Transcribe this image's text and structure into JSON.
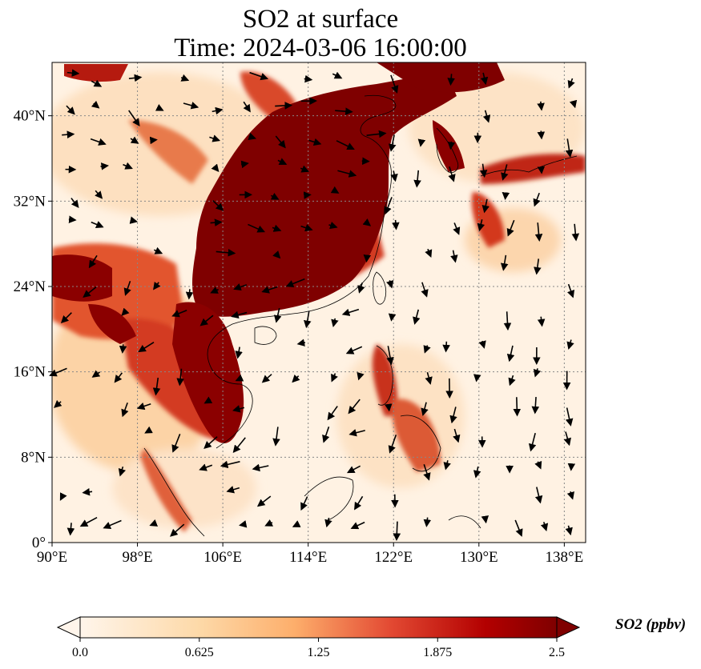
{
  "title": {
    "line1": "SO2 at surface",
    "line2": "Time: 2024-03-06 16:00:00"
  },
  "map": {
    "lon_range": [
      90,
      140
    ],
    "lat_range": [
      0,
      45
    ],
    "lon_ticks": [
      {
        "value": 90,
        "label": "90°E"
      },
      {
        "value": 98,
        "label": "98°E"
      },
      {
        "value": 106,
        "label": "106°E"
      },
      {
        "value": 114,
        "label": "114°E"
      },
      {
        "value": 122,
        "label": "122°E"
      },
      {
        "value": 130,
        "label": "130°E"
      },
      {
        "value": 138,
        "label": "138°E"
      }
    ],
    "lat_ticks": [
      {
        "value": 0,
        "label": "0°"
      },
      {
        "value": 8,
        "label": "8°N"
      },
      {
        "value": 16,
        "label": "16°N"
      },
      {
        "value": 24,
        "label": "24°N"
      },
      {
        "value": 32,
        "label": "32°N"
      },
      {
        "value": 40,
        "label": "40°N"
      }
    ],
    "gridlines": true,
    "field": "SO2 surface concentration with wind vectors"
  },
  "colorbar": {
    "label": "SO2 (ppbv)",
    "min": 0.0,
    "max": 2.5,
    "ticks": [
      "0.0",
      "0.625",
      "1.25",
      "1.875",
      "2.5"
    ],
    "extend": "both",
    "colormap": [
      "#fff5eb",
      "#fdd9a8",
      "#fdae6b",
      "#e34a33",
      "#b30000",
      "#7f0000"
    ]
  },
  "colors": {
    "high": "#7f0000",
    "mid": "#d7301f",
    "low": "#fdd49e",
    "background": "#fff2e3",
    "coast": "#000000",
    "grid": "#888888"
  }
}
